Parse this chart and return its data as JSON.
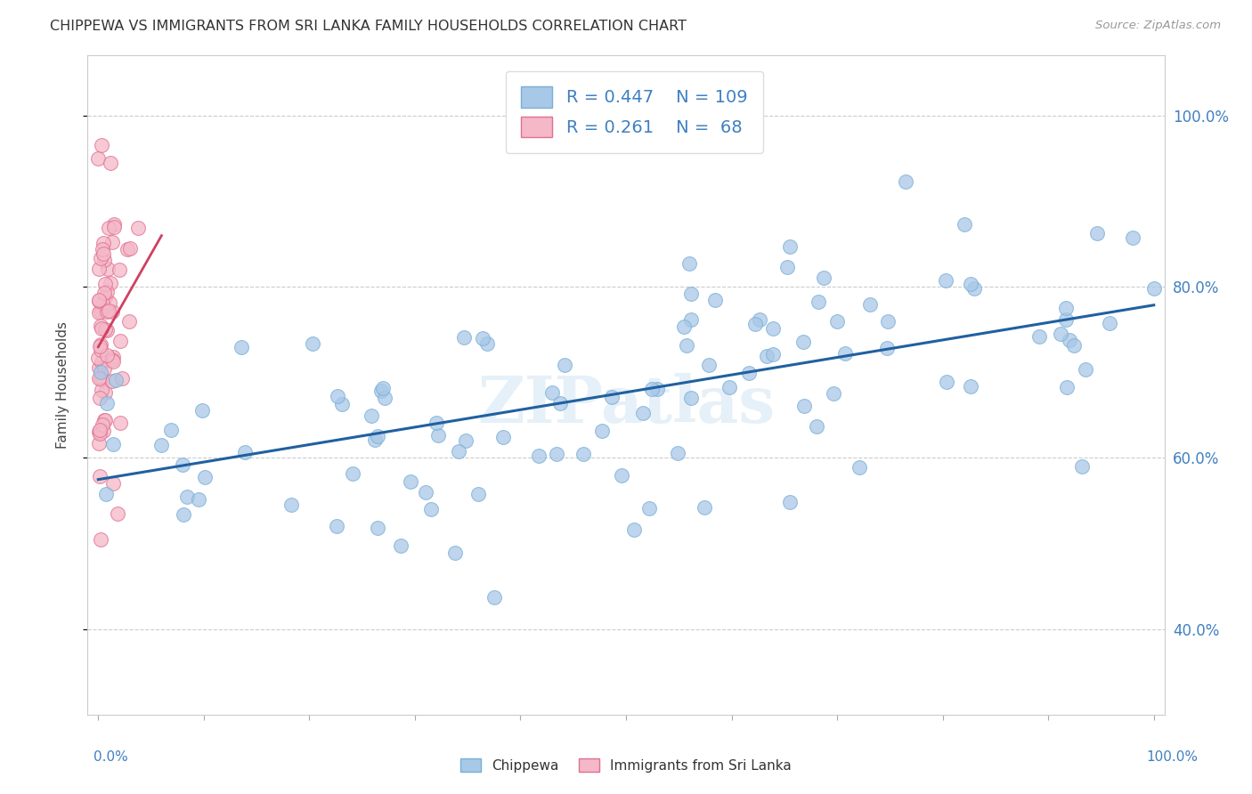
{
  "title": "CHIPPEWA VS IMMIGRANTS FROM SRI LANKA FAMILY HOUSEHOLDS CORRELATION CHART",
  "source": "Source: ZipAtlas.com",
  "ylabel": "Family Households",
  "blue_R": 0.447,
  "blue_N": 109,
  "pink_R": 0.261,
  "pink_N": 68,
  "blue_color": "#a8c8e8",
  "blue_edge": "#7aafd4",
  "pink_color": "#f4b8c8",
  "pink_edge": "#e07090",
  "blue_line_color": "#2060a0",
  "pink_line_color": "#d04060",
  "watermark": "ZIPatlas",
  "ytick_labels": [
    "40.0%",
    "60.0%",
    "80.0%",
    "100.0%"
  ],
  "ytick_vals": [
    0.4,
    0.6,
    0.8,
    1.0
  ],
  "legend_labels": [
    "Chippewa",
    "Immigrants from Sri Lanka"
  ],
  "title_color": "#333333",
  "source_color": "#999999",
  "grid_color": "#cccccc",
  "tick_color": "#4080c0"
}
